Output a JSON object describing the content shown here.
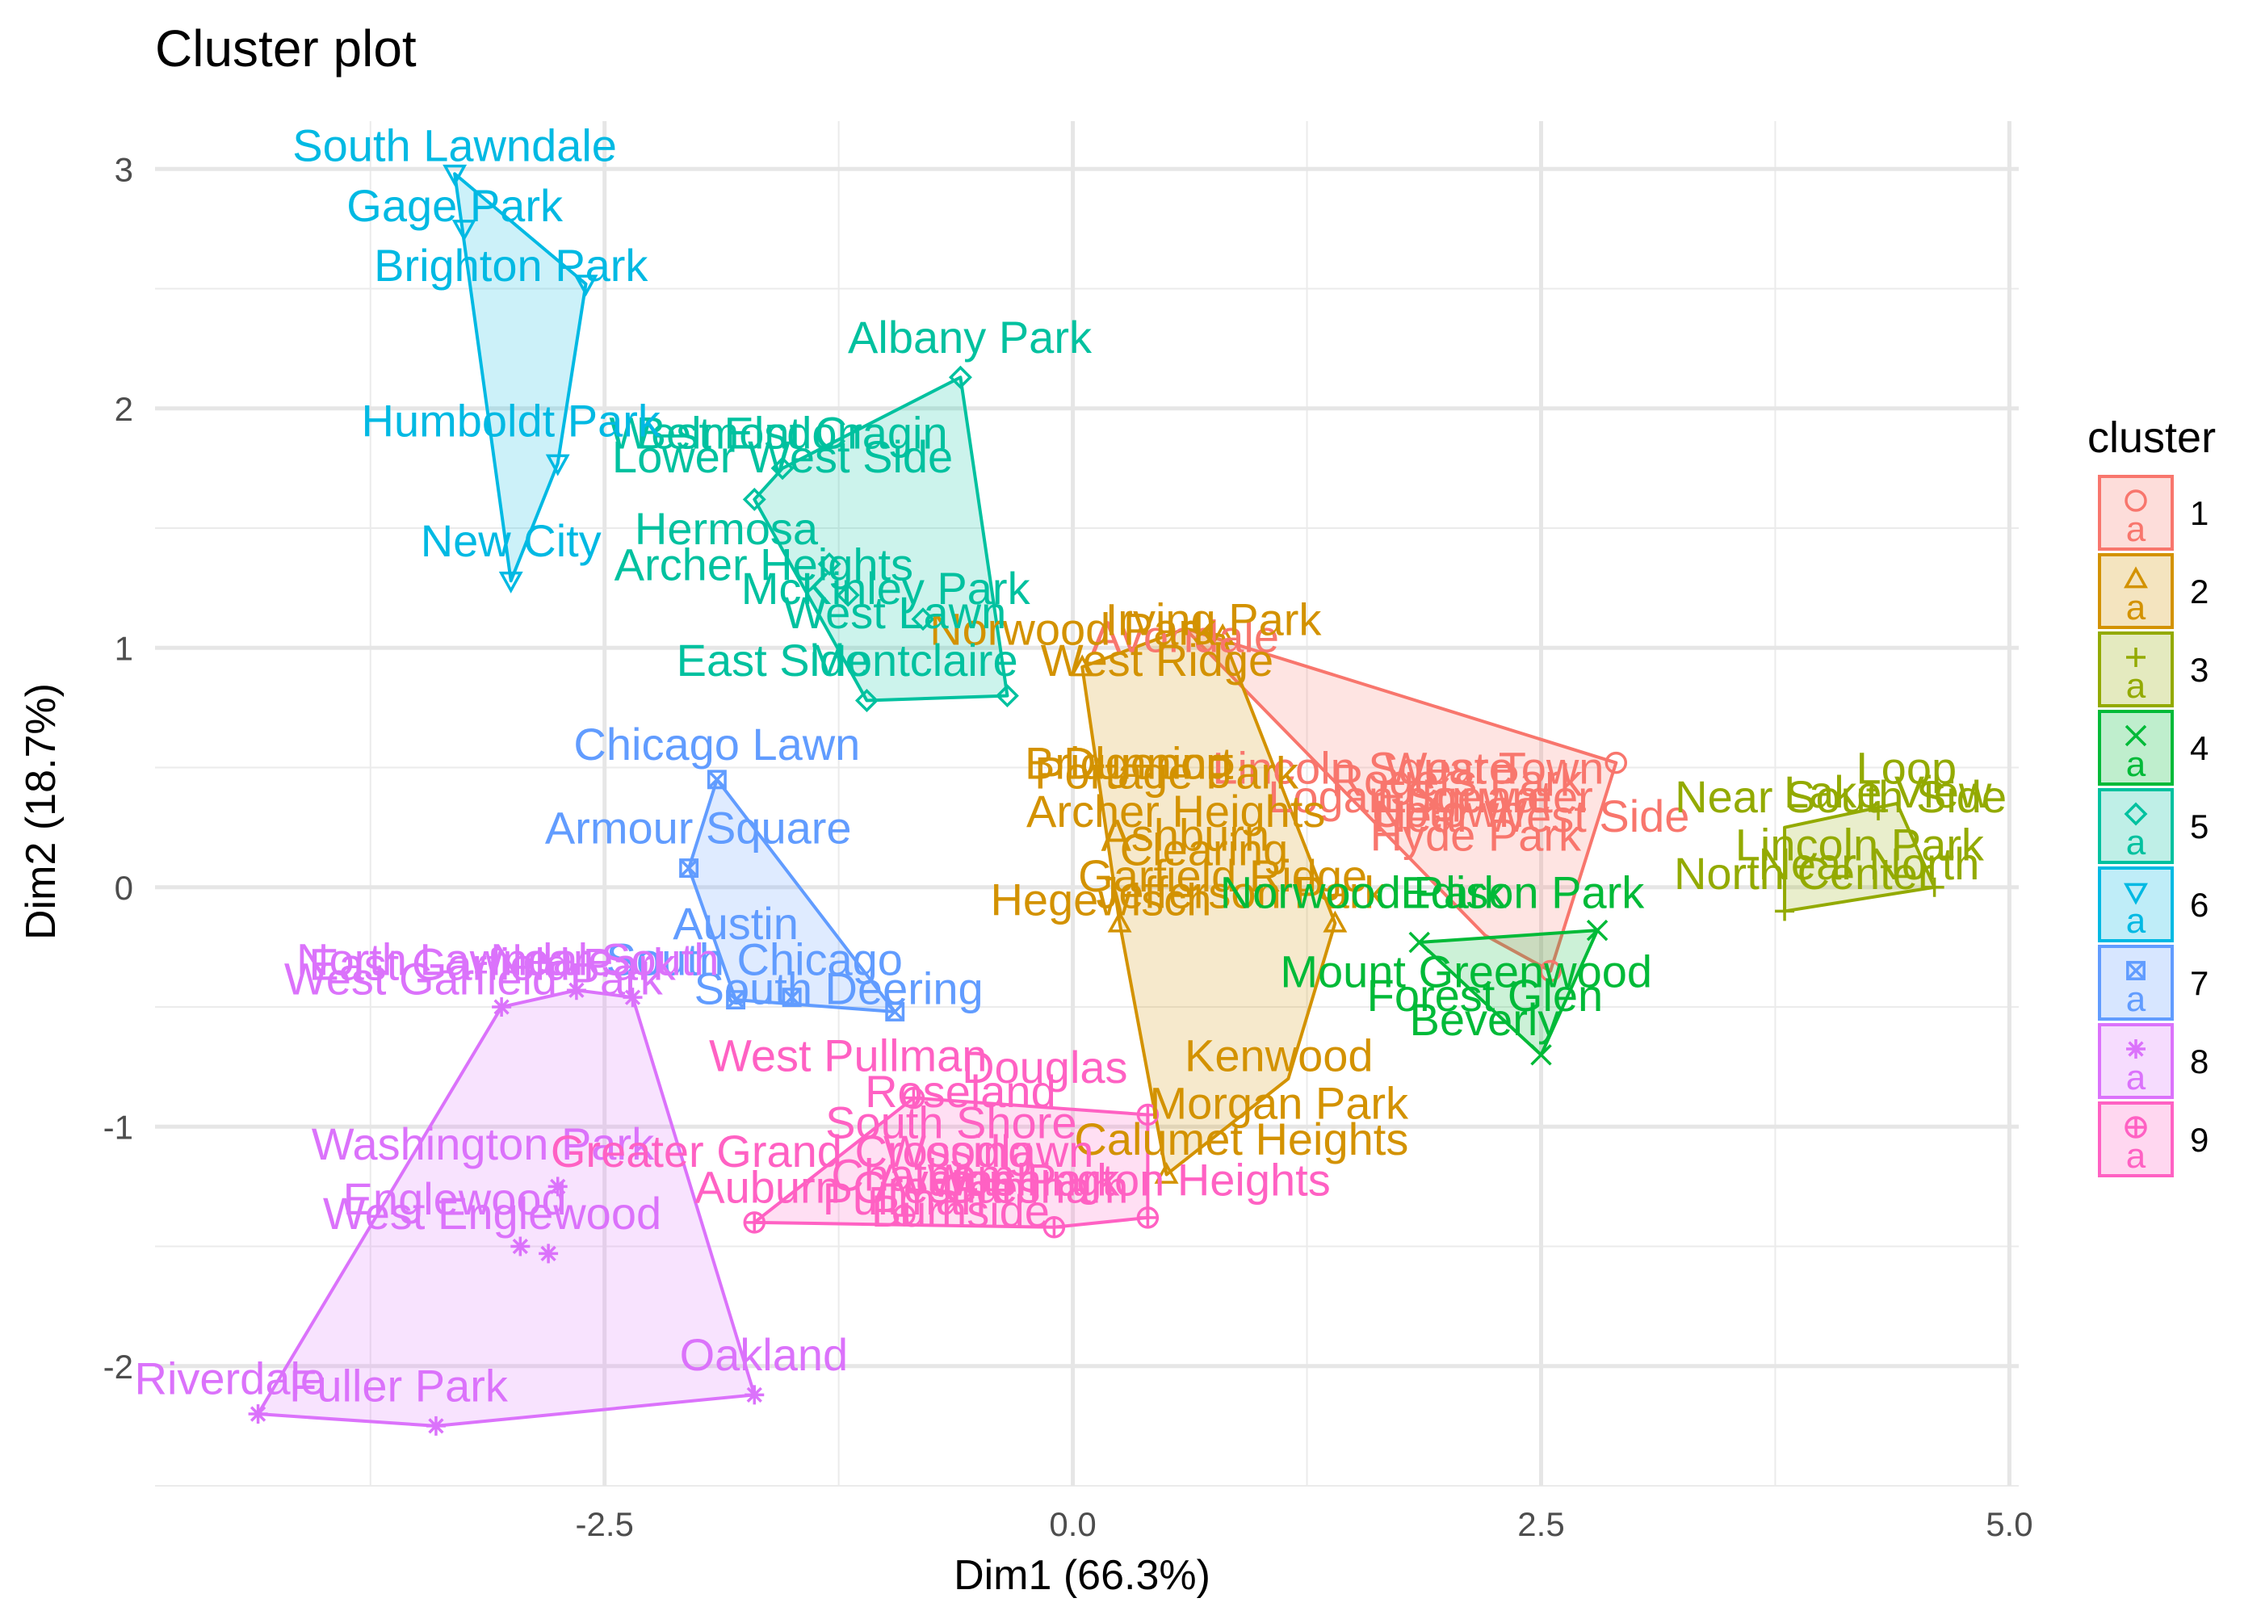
{
  "chart_data": {
    "type": "scatter",
    "title": "Cluster plot",
    "xlabel": "Dim1 (66.3%)",
    "ylabel": "Dim2 (18.7%)",
    "xlim": [
      -4.9,
      5.05
    ],
    "ylim": [
      -2.5,
      3.2
    ],
    "x_ticks": [
      -2.5,
      0,
      2.5,
      5
    ],
    "x_tick_labels": [
      "-2.5",
      "0.0",
      "2.5",
      "5.0"
    ],
    "y_ticks": [
      -2,
      -1,
      0,
      1,
      2,
      3
    ],
    "y_tick_labels": [
      "-2",
      "-1",
      "0",
      "1",
      "2",
      "3"
    ],
    "grid": true,
    "legend": {
      "title": "cluster",
      "position": "right"
    },
    "series": [
      {
        "name": "1",
        "color": "#F8766D",
        "marker": "circle",
        "points": [
          {
            "x": 1.55,
            "y": 0.5,
            "label": "Lincoln Square"
          },
          {
            "x": 2.25,
            "y": 0.5,
            "label": "West Town"
          },
          {
            "x": 1.8,
            "y": 0.38,
            "label": "Logan Square"
          },
          {
            "x": 2.05,
            "y": 0.45,
            "label": "Rogers Park"
          },
          {
            "x": 2.0,
            "y": 0.32,
            "label": "Uptown"
          },
          {
            "x": 2.2,
            "y": 0.38,
            "label": "Edgewater"
          },
          {
            "x": 2.45,
            "y": 0.3,
            "label": "Near West Side"
          },
          {
            "x": 2.15,
            "y": 0.22,
            "label": "Hyde Park"
          },
          {
            "x": 0.6,
            "y": 1.05,
            "label": "Avondale"
          },
          {
            "x": 2.9,
            "y": 0.52,
            "label": ""
          },
          {
            "x": 2.55,
            "y": -0.35,
            "label": ""
          }
        ],
        "hull": [
          [
            0.6,
            1.08
          ],
          [
            2.9,
            0.52
          ],
          [
            2.55,
            -0.35
          ],
          [
            2.2,
            -0.2
          ]
        ]
      },
      {
        "name": "2",
        "color": "#D39200",
        "marker": "triangle",
        "points": [
          {
            "x": 0.4,
            "y": 0.52,
            "label": "Dunning"
          },
          {
            "x": 0.75,
            "y": 1.12,
            "label": "Irving Park"
          },
          {
            "x": 0.0,
            "y": 1.08,
            "label": "Norwood Park"
          },
          {
            "x": 0.45,
            "y": 0.95,
            "label": "West Ridge"
          },
          {
            "x": 0.3,
            "y": 0.52,
            "label": "Bridgeport"
          },
          {
            "x": 0.5,
            "y": 0.48,
            "label": "Portage Park"
          },
          {
            "x": 0.55,
            "y": 0.32,
            "label": "Archer Heights"
          },
          {
            "x": 0.6,
            "y": 0.22,
            "label": "Ashburn"
          },
          {
            "x": 0.7,
            "y": 0.16,
            "label": "Clearing"
          },
          {
            "x": 0.8,
            "y": 0.05,
            "label": "Garfield Ridge"
          },
          {
            "x": 0.9,
            "y": -0.02,
            "label": "Jefferson Park"
          },
          {
            "x": 0.15,
            "y": -0.05,
            "label": "Hegewisch"
          },
          {
            "x": 1.1,
            "y": -0.7,
            "label": "Kenwood"
          },
          {
            "x": 1.1,
            "y": -0.9,
            "label": "Morgan Park"
          },
          {
            "x": 0.9,
            "y": -1.05,
            "label": "Calumet Heights"
          },
          {
            "x": 0.05,
            "y": 0.92,
            "label": ""
          },
          {
            "x": 0.8,
            "y": 1.05,
            "label": ""
          },
          {
            "x": 1.4,
            "y": -0.15,
            "label": ""
          },
          {
            "x": 0.5,
            "y": -1.2,
            "label": ""
          },
          {
            "x": 0.25,
            "y": -0.15,
            "label": ""
          }
        ],
        "hull": [
          [
            0.05,
            0.92
          ],
          [
            0.6,
            1.08
          ],
          [
            0.8,
            1.05
          ],
          [
            1.4,
            -0.15
          ],
          [
            1.15,
            -0.8
          ],
          [
            0.5,
            -1.2
          ],
          [
            0.25,
            -0.15
          ]
        ]
      },
      {
        "name": "3",
        "color": "#93AA00",
        "marker": "plus",
        "points": [
          {
            "x": 4.45,
            "y": 0.5,
            "label": "Loop"
          },
          {
            "x": 4.35,
            "y": 0.4,
            "label": "Lake View"
          },
          {
            "x": 4.1,
            "y": 0.38,
            "label": "Near South Side"
          },
          {
            "x": 4.2,
            "y": 0.18,
            "label": "Lincoln Park"
          },
          {
            "x": 4.25,
            "y": 0.1,
            "label": "Near North"
          },
          {
            "x": 3.9,
            "y": 0.06,
            "label": "North Center"
          },
          {
            "x": 3.8,
            "y": -0.1,
            "label": ""
          },
          {
            "x": 4.6,
            "y": 0.0,
            "label": ""
          },
          {
            "x": 4.3,
            "y": 0.32,
            "label": ""
          }
        ],
        "hull": [
          [
            3.8,
            0.25
          ],
          [
            4.4,
            0.35
          ],
          [
            4.6,
            0.0
          ],
          [
            3.8,
            -0.1
          ]
        ]
      },
      {
        "name": "4",
        "color": "#00BA38",
        "marker": "x",
        "points": [
          {
            "x": 2.4,
            "y": -0.02,
            "label": "Edison Park"
          },
          {
            "x": 1.55,
            "y": -0.02,
            "label": "Norwood Park"
          },
          {
            "x": 2.1,
            "y": -0.35,
            "label": "Mount Greenwood"
          },
          {
            "x": 2.2,
            "y": -0.45,
            "label": "Forest Glen"
          },
          {
            "x": 2.2,
            "y": -0.55,
            "label": "Beverly"
          },
          {
            "x": 1.85,
            "y": -0.23,
            "label": ""
          },
          {
            "x": 2.8,
            "y": -0.18,
            "label": ""
          },
          {
            "x": 2.5,
            "y": -0.7,
            "label": ""
          }
        ],
        "hull": [
          [
            1.85,
            -0.23
          ],
          [
            2.8,
            -0.18
          ],
          [
            2.5,
            -0.7
          ]
        ]
      },
      {
        "name": "5",
        "color": "#00C19F",
        "marker": "diamond",
        "points": [
          {
            "x": -0.55,
            "y": 2.3,
            "label": "Albany Park"
          },
          {
            "x": -1.5,
            "y": 1.9,
            "label": "Belmont Cragin"
          },
          {
            "x": -1.8,
            "y": 1.9,
            "label": "West Elsdon"
          },
          {
            "x": -1.55,
            "y": 1.8,
            "label": "Lower West Side"
          },
          {
            "x": -1.85,
            "y": 1.5,
            "label": "Hermosa"
          },
          {
            "x": -1.65,
            "y": 1.35,
            "label": "Archer Heights"
          },
          {
            "x": -1.0,
            "y": 1.25,
            "label": "McKinley Park"
          },
          {
            "x": -0.95,
            "y": 1.15,
            "label": "West Lawn"
          },
          {
            "x": -0.85,
            "y": 0.95,
            "label": "Montclaire"
          },
          {
            "x": -1.6,
            "y": 0.95,
            "label": "East Side"
          },
          {
            "x": -0.6,
            "y": 2.13,
            "label": ""
          },
          {
            "x": -1.55,
            "y": 1.75,
            "label": ""
          },
          {
            "x": -1.7,
            "y": 1.62,
            "label": ""
          },
          {
            "x": -1.3,
            "y": 1.35,
            "label": ""
          },
          {
            "x": -1.2,
            "y": 1.22,
            "label": ""
          },
          {
            "x": -0.8,
            "y": 1.12,
            "label": ""
          },
          {
            "x": -1.1,
            "y": 0.78,
            "label": ""
          },
          {
            "x": -0.35,
            "y": 0.8,
            "label": ""
          }
        ],
        "hull": [
          [
            -0.6,
            2.13
          ],
          [
            -1.55,
            1.75
          ],
          [
            -1.7,
            1.62
          ],
          [
            -1.1,
            0.78
          ],
          [
            -0.35,
            0.8
          ]
        ]
      },
      {
        "name": "6",
        "color": "#00B9E3",
        "marker": "triangle-down",
        "points": [
          {
            "x": -3.3,
            "y": 3.1,
            "label": "South Lawndale"
          },
          {
            "x": -3.3,
            "y": 2.85,
            "label": "Gage Park"
          },
          {
            "x": -3.0,
            "y": 2.6,
            "label": "Brighton Park"
          },
          {
            "x": -3.0,
            "y": 1.95,
            "label": "Humboldt Park"
          },
          {
            "x": -3.0,
            "y": 1.45,
            "label": "New City"
          },
          {
            "x": -3.3,
            "y": 2.98,
            "label": ""
          },
          {
            "x": -3.25,
            "y": 2.75,
            "label": ""
          },
          {
            "x": -2.6,
            "y": 2.52,
            "label": ""
          },
          {
            "x": -2.75,
            "y": 1.77,
            "label": ""
          },
          {
            "x": -3.0,
            "y": 1.28,
            "label": ""
          }
        ],
        "hull": [
          [
            -3.3,
            2.98
          ],
          [
            -2.6,
            2.52
          ],
          [
            -2.75,
            1.77
          ],
          [
            -3.0,
            1.28
          ]
        ]
      },
      {
        "name": "7",
        "color": "#619CFF",
        "marker": "square",
        "points": [
          {
            "x": -1.9,
            "y": 0.6,
            "label": "Chicago Lawn"
          },
          {
            "x": -2.0,
            "y": 0.25,
            "label": "Armour Square"
          },
          {
            "x": -1.8,
            "y": -0.15,
            "label": "Austin"
          },
          {
            "x": -1.7,
            "y": -0.3,
            "label": "South Chicago"
          },
          {
            "x": -1.25,
            "y": -0.42,
            "label": "South Deering"
          },
          {
            "x": -1.9,
            "y": 0.45,
            "label": ""
          },
          {
            "x": -2.05,
            "y": 0.08,
            "label": ""
          },
          {
            "x": -1.8,
            "y": -0.47,
            "label": ""
          },
          {
            "x": -1.5,
            "y": -0.46,
            "label": ""
          },
          {
            "x": -0.95,
            "y": -0.52,
            "label": ""
          }
        ],
        "hull": [
          [
            -1.9,
            0.45
          ],
          [
            -2.05,
            0.08
          ],
          [
            -1.8,
            -0.47
          ],
          [
            -0.95,
            -0.52
          ]
        ]
      },
      {
        "name": "8",
        "color": "#DB72FB",
        "marker": "asterisk",
        "points": [
          {
            "x": -3.3,
            "y": -0.3,
            "label": "North Lawndale"
          },
          {
            "x": -3.1,
            "y": -0.32,
            "label": "East Garfield Park"
          },
          {
            "x": -3.2,
            "y": -0.38,
            "label": "West Garfield Park"
          },
          {
            "x": -2.5,
            "y": -0.3,
            "label": "Near South"
          },
          {
            "x": -3.15,
            "y": -1.07,
            "label": "Washington Park"
          },
          {
            "x": -3.3,
            "y": -1.3,
            "label": "Englewood"
          },
          {
            "x": -3.1,
            "y": -1.36,
            "label": "West Englewood"
          },
          {
            "x": -4.5,
            "y": -2.05,
            "label": "Riverdale"
          },
          {
            "x": -3.6,
            "y": -2.08,
            "label": "Fuller Park"
          },
          {
            "x": -1.65,
            "y": -1.95,
            "label": "Oakland"
          },
          {
            "x": -3.05,
            "y": -0.5,
            "label": ""
          },
          {
            "x": -2.65,
            "y": -0.43,
            "label": ""
          },
          {
            "x": -2.35,
            "y": -0.46,
            "label": ""
          },
          {
            "x": -2.75,
            "y": -1.25,
            "label": ""
          },
          {
            "x": -2.95,
            "y": -1.5,
            "label": ""
          },
          {
            "x": -2.8,
            "y": -1.53,
            "label": ""
          },
          {
            "x": -4.35,
            "y": -2.2,
            "label": ""
          },
          {
            "x": -3.4,
            "y": -2.25,
            "label": ""
          },
          {
            "x": -1.7,
            "y": -2.12,
            "label": ""
          }
        ],
        "hull": [
          [
            -3.05,
            -0.5
          ],
          [
            -2.65,
            -0.43
          ],
          [
            -2.35,
            -0.46
          ],
          [
            -1.7,
            -2.12
          ],
          [
            -3.4,
            -2.25
          ],
          [
            -4.35,
            -2.2
          ]
        ]
      },
      {
        "name": "9",
        "color": "#FF61C3",
        "marker": "circle-plus",
        "points": [
          {
            "x": -1.2,
            "y": -0.7,
            "label": "West Pullman"
          },
          {
            "x": -0.15,
            "y": -0.75,
            "label": "Douglas"
          },
          {
            "x": -0.6,
            "y": -0.85,
            "label": "Roseland"
          },
          {
            "x": -0.65,
            "y": -0.98,
            "label": "South Shore"
          },
          {
            "x": -1.5,
            "y": -1.1,
            "label": "Greater Grand Crossing"
          },
          {
            "x": -0.45,
            "y": -1.1,
            "label": "Woodlawn"
          },
          {
            "x": -0.4,
            "y": -1.22,
            "label": "Avalon Park"
          },
          {
            "x": -0.8,
            "y": -1.2,
            "label": "Chatham"
          },
          {
            "x": -1.1,
            "y": -1.25,
            "label": "Auburn Gresham"
          },
          {
            "x": -0.9,
            "y": -1.3,
            "label": "Pullman"
          },
          {
            "x": 0.3,
            "y": -1.22,
            "label": "Washington Heights"
          },
          {
            "x": -0.6,
            "y": -1.35,
            "label": "Burnside"
          },
          {
            "x": -0.2,
            "y": -1.25,
            "label": "Gresham"
          },
          {
            "x": -0.85,
            "y": -0.88,
            "label": ""
          },
          {
            "x": 0.4,
            "y": -0.95,
            "label": ""
          },
          {
            "x": -1.7,
            "y": -1.4,
            "label": ""
          },
          {
            "x": -0.9,
            "y": -1.37,
            "label": ""
          },
          {
            "x": -0.1,
            "y": -1.42,
            "label": ""
          },
          {
            "x": 0.4,
            "y": -1.38,
            "label": ""
          }
        ],
        "hull": [
          [
            -0.85,
            -0.88
          ],
          [
            0.4,
            -0.95
          ],
          [
            0.4,
            -1.38
          ],
          [
            -0.1,
            -1.42
          ],
          [
            -1.7,
            -1.4
          ]
        ]
      }
    ]
  }
}
